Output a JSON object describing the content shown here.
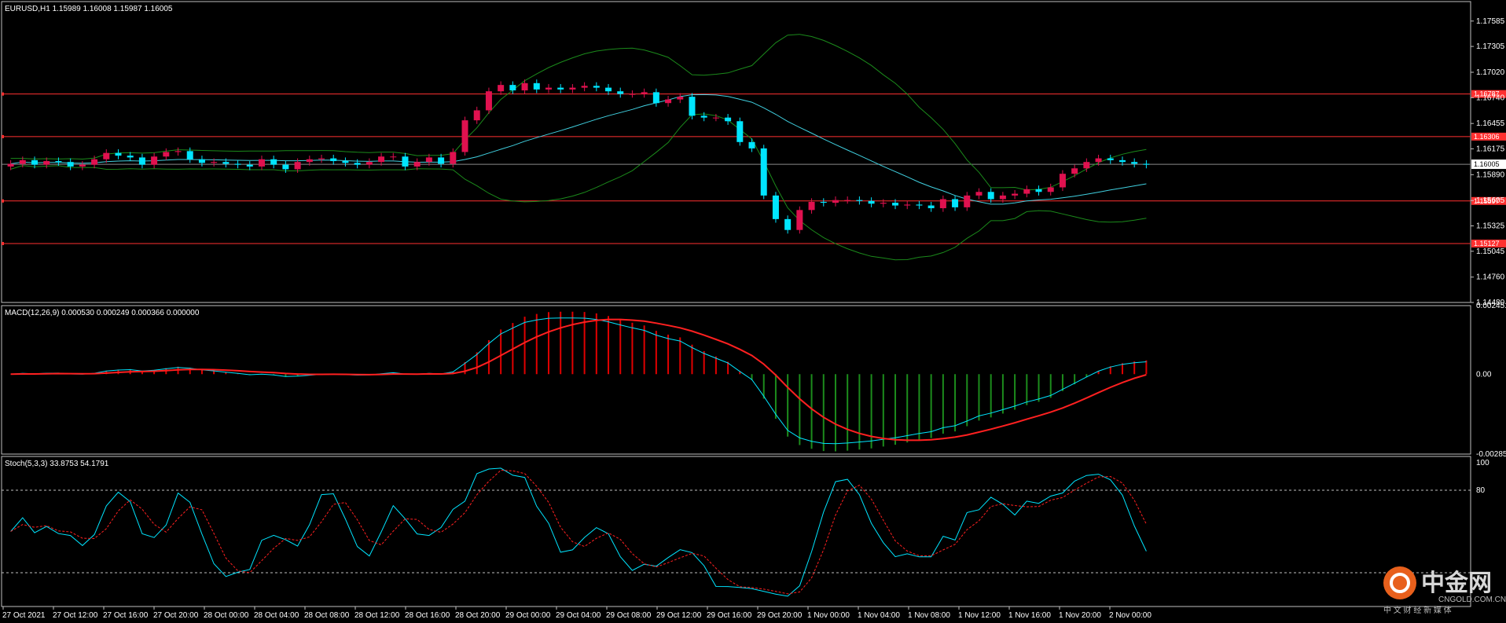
{
  "chart_data": [
    {
      "type": "candlestick",
      "title": "EURUSD,H1  1.15989 1.16008 1.15987 1.16005",
      "ylim": [
        1.1448,
        1.178
      ],
      "y_ticks": [
        "1.17585",
        "1.17305",
        "1.17020",
        "1.16740",
        "1.16455",
        "1.16175",
        "1.15890",
        "1.15605",
        "1.15325",
        "1.15045",
        "1.14760",
        "1.14480"
      ],
      "current_price": "1.16005",
      "levels": [
        {
          "value": 1.1678,
          "label": "1.16787",
          "color": "#ff3030"
        },
        {
          "value": 1.1631,
          "label": "1.16306",
          "color": "#ff3030"
        },
        {
          "value": 1.156,
          "label": "1.15597",
          "color": "#ff3030"
        },
        {
          "value": 1.1513,
          "label": "1.15127",
          "color": "#ff3030"
        }
      ],
      "x_labels": [
        "27 Oct 2021",
        "27 Oct 12:00",
        "27 Oct 16:00",
        "27 Oct 20:00",
        "28 Oct 00:00",
        "28 Oct 04:00",
        "28 Oct 08:00",
        "28 Oct 12:00",
        "28 Oct 16:00",
        "28 Oct 20:00",
        "29 Oct 00:00",
        "29 Oct 04:00",
        "29 Oct 08:00",
        "29 Oct 12:00",
        "29 Oct 16:00",
        "29 Oct 20:00",
        "1 Nov 00:00",
        "1 Nov 04:00",
        "1 Nov 08:00",
        "1 Nov 12:00",
        "1 Nov 16:00",
        "1 Nov 20:00",
        "2 Nov 00:00"
      ],
      "close": [
        1.1601,
        1.1605,
        1.16,
        1.1604,
        1.1603,
        1.1598,
        1.16,
        1.1606,
        1.1613,
        1.161,
        1.1608,
        1.16,
        1.1609,
        1.1614,
        1.1615,
        1.1606,
        1.1602,
        1.1603,
        1.1601,
        1.16,
        1.1598,
        1.1606,
        1.16,
        1.1595,
        1.1603,
        1.1606,
        1.1607,
        1.1604,
        1.1602,
        1.16,
        1.1603,
        1.1609,
        1.1609,
        1.1598,
        1.1603,
        1.1608,
        1.1601,
        1.1614,
        1.1649,
        1.166,
        1.1681,
        1.1688,
        1.1682,
        1.169,
        1.1683,
        1.1685,
        1.1683,
        1.1685,
        1.1687,
        1.1685,
        1.1681,
        1.1678,
        1.1678,
        1.168,
        1.1668,
        1.1672,
        1.1675,
        1.1654,
        1.1652,
        1.1652,
        1.1648,
        1.1625,
        1.1618,
        1.1566,
        1.154,
        1.1528,
        1.155,
        1.1559,
        1.1558,
        1.1561,
        1.1561,
        1.156,
        1.1557,
        1.1558,
        1.1555,
        1.1556,
        1.1555,
        1.1552,
        1.1562,
        1.1553,
        1.1566,
        1.157,
        1.1562,
        1.1566,
        1.1568,
        1.1573,
        1.157,
        1.1575,
        1.159,
        1.1596,
        1.1603,
        1.1607,
        1.1605,
        1.1603,
        1.1601,
        1.16
      ],
      "open": [
        1.1598,
        1.1601,
        1.1605,
        1.16,
        1.1604,
        1.1603,
        1.1598,
        1.16,
        1.1606,
        1.1613,
        1.161,
        1.1608,
        1.16,
        1.1609,
        1.1614,
        1.1615,
        1.1606,
        1.1602,
        1.1603,
        1.1601,
        1.16,
        1.1598,
        1.1606,
        1.16,
        1.1595,
        1.1603,
        1.1606,
        1.1607,
        1.1604,
        1.1602,
        1.16,
        1.1603,
        1.1609,
        1.1609,
        1.1598,
        1.1603,
        1.1608,
        1.1601,
        1.1614,
        1.1649,
        1.166,
        1.1681,
        1.1688,
        1.1682,
        1.169,
        1.1683,
        1.1685,
        1.1683,
        1.1685,
        1.1687,
        1.1685,
        1.1681,
        1.1678,
        1.1678,
        1.168,
        1.1668,
        1.1672,
        1.1675,
        1.1654,
        1.1652,
        1.1652,
        1.1648,
        1.1625,
        1.1618,
        1.1566,
        1.154,
        1.1528,
        1.155,
        1.1559,
        1.1558,
        1.1561,
        1.1561,
        1.156,
        1.1557,
        1.1558,
        1.1555,
        1.1556,
        1.1555,
        1.1552,
        1.1562,
        1.1553,
        1.1566,
        1.157,
        1.1562,
        1.1566,
        1.1568,
        1.1573,
        1.157,
        1.1575,
        1.159,
        1.1596,
        1.1603,
        1.1607,
        1.1605,
        1.1603,
        1.1601
      ],
      "indicator": "Bollinger Bands"
    },
    {
      "type": "line",
      "title": "MACD(12,26,9) 0.000530 0.000249 0.000366 0.000000",
      "ylim": [
        -0.002858,
        0.002451
      ],
      "y_ticks": [
        "0.002451",
        "0.00",
        "-0.002858"
      ],
      "series": [
        {
          "name": "MACD",
          "color": "#00e5ff"
        },
        {
          "name": "Signal",
          "color": "#ff2020"
        }
      ],
      "histogram_positive_color": "#e00000",
      "histogram_negative_color": "#1c8c1c"
    },
    {
      "type": "line",
      "title": "Stoch(5,3,3) 33.8753 54.1791",
      "ylim": [
        0,
        100
      ],
      "y_ticks": [
        "100",
        "80"
      ],
      "levels": [
        80,
        20
      ],
      "series": [
        {
          "name": "Main",
          "color": "#00e5ff"
        },
        {
          "name": "Signal",
          "color": "#ff2020"
        }
      ]
    }
  ],
  "watermark": {
    "brand": "中金网",
    "url": "CNGOLD.COM.CN",
    "tagline": "中 文 财 经 新 媒 体"
  }
}
